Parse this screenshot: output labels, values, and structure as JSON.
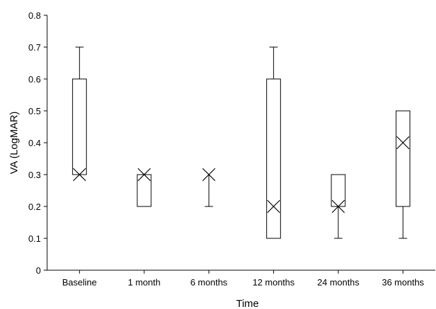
{
  "chart_data": {
    "type": "box",
    "title": "",
    "xlabel": "Time",
    "ylabel": "VA (LogMAR)",
    "ylim": [
      0,
      0.8
    ],
    "yticks": [
      0,
      0.1,
      0.2,
      0.3,
      0.4,
      0.5,
      0.6,
      0.7,
      0.8
    ],
    "ytick_labels": [
      "0",
      "0.1",
      "0.2",
      "0.3",
      "0.4",
      "0.5",
      "0.6",
      "0.7",
      "0.8"
    ],
    "categories": [
      "Baseline",
      "1 month",
      "6 months",
      "12 months",
      "24 months",
      "36 months"
    ],
    "boxes": [
      {
        "min": 0.3,
        "q1": 0.3,
        "q3": 0.6,
        "max": 0.7,
        "mean": 0.3
      },
      {
        "min": 0.2,
        "q1": 0.2,
        "q3": 0.3,
        "max": 0.3,
        "mean": 0.3
      },
      {
        "min": 0.2,
        "q1": 0.3,
        "q3": 0.3,
        "max": 0.3,
        "mean": 0.3
      },
      {
        "min": 0.1,
        "q1": 0.1,
        "q3": 0.6,
        "max": 0.7,
        "mean": 0.2
      },
      {
        "min": 0.1,
        "q1": 0.2,
        "q3": 0.3,
        "max": 0.3,
        "mean": 0.2
      },
      {
        "min": 0.1,
        "q1": 0.2,
        "q3": 0.5,
        "max": 0.5,
        "mean": 0.4
      }
    ],
    "colors": {
      "stroke": "#000000",
      "fill": "#ffffff"
    }
  }
}
